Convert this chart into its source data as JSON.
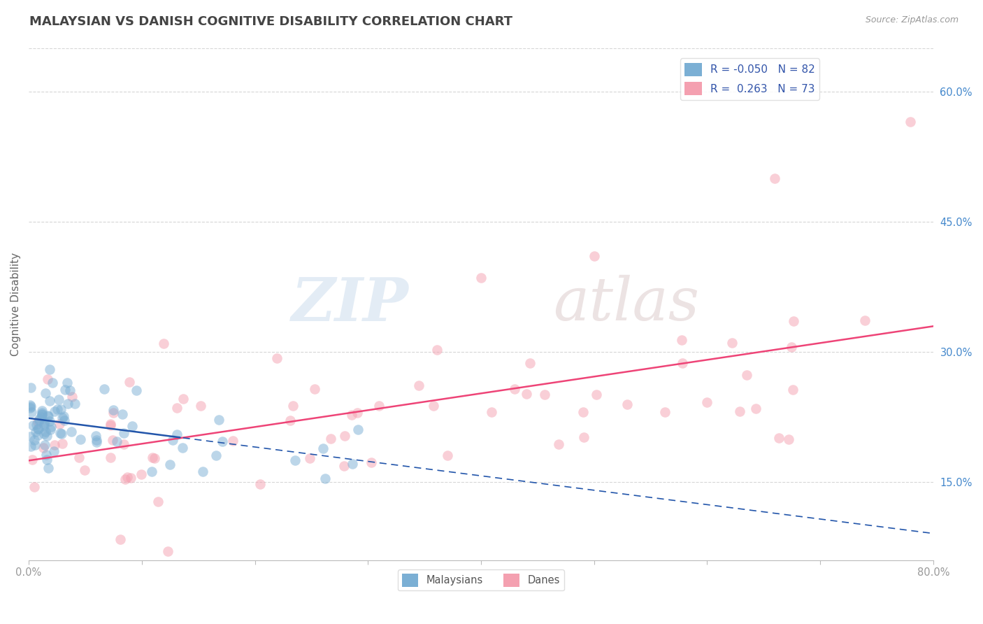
{
  "title": "MALAYSIAN VS DANISH COGNITIVE DISABILITY CORRELATION CHART",
  "source": "Source: ZipAtlas.com",
  "ylabel": "Cognitive Disability",
  "xlim": [
    0.0,
    0.8
  ],
  "ylim": [
    0.06,
    0.65
  ],
  "xticks": [
    0.0,
    0.1,
    0.2,
    0.3,
    0.4,
    0.5,
    0.6,
    0.7,
    0.8
  ],
  "xtick_labels": [
    "0.0%",
    "",
    "",
    "",
    "",
    "",
    "",
    "",
    "80.0%"
  ],
  "yticks_right": [
    0.15,
    0.3,
    0.45,
    0.6
  ],
  "ytick_labels_right": [
    "15.0%",
    "30.0%",
    "45.0%",
    "60.0%"
  ],
  "malaysian_R": -0.05,
  "malaysian_N": 82,
  "danish_R": 0.263,
  "danish_N": 73,
  "malaysian_color": "#7BAFD4",
  "danish_color": "#F4A0B0",
  "malaysian_trend_color": "#2255AA",
  "danish_trend_color": "#EE4477",
  "background_color": "#FFFFFF",
  "grid_color": "#CCCCCC",
  "watermark_zip": "ZIP",
  "watermark_atlas": "atlas",
  "legend_labels": [
    "Malaysians",
    "Danes"
  ],
  "title_color": "#444444",
  "axis_label_color": "#666666",
  "tick_color": "#999999",
  "right_tick_color": "#4488CC"
}
